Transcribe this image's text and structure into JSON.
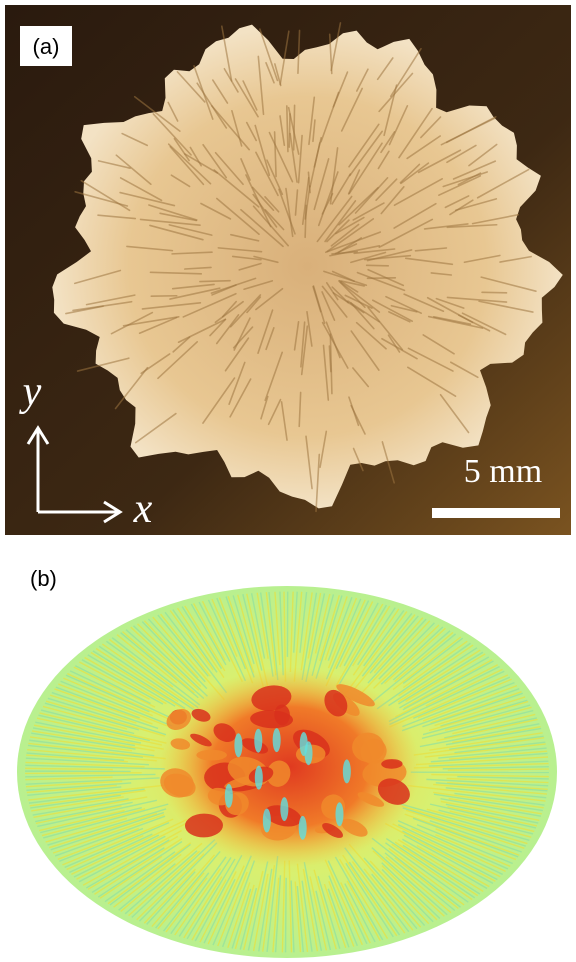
{
  "panels": [
    {
      "label": "(a)",
      "axes": {
        "y": "y",
        "x": "x"
      },
      "scale_bar": "5 mm"
    },
    {
      "label": "(b)"
    }
  ]
}
